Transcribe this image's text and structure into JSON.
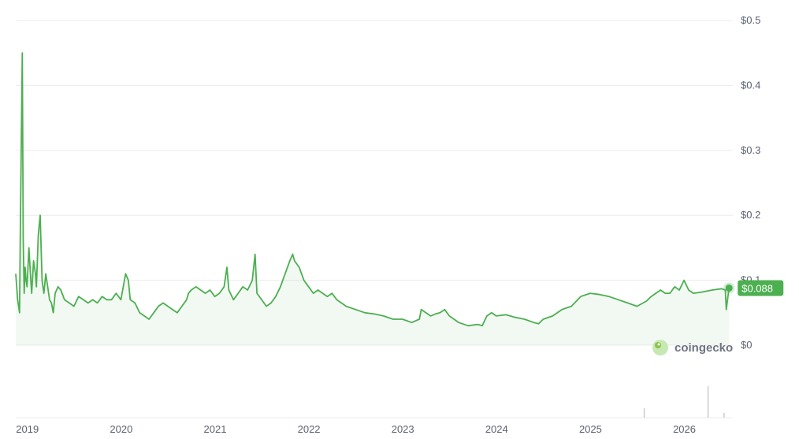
{
  "chart_data": {
    "type": "area",
    "title": "",
    "xlabel": "",
    "ylabel": "",
    "ylim": [
      0,
      0.5
    ],
    "grid": true,
    "y_ticks": [
      "$0",
      "$0.1",
      "$0.2",
      "$0.3",
      "$0.4",
      "$0.5"
    ],
    "y_tick_values": [
      0,
      0.1,
      0.2,
      0.3,
      0.4,
      0.5
    ],
    "x_ticks": [
      "2019",
      "2020",
      "2021",
      "2022",
      "2023",
      "2024",
      "2025",
      "2026"
    ],
    "x_tick_values": [
      2019.0,
      2020.0,
      2021.0,
      2022.0,
      2023.0,
      2024.0,
      2025.0,
      2026.0
    ],
    "xlim": [
      2018.88,
      2026.52
    ],
    "series": [
      {
        "color": "#4caf50",
        "x": [
          2018.88,
          2018.9,
          2018.92,
          2018.93,
          2018.95,
          2018.96,
          2018.97,
          2018.98,
          2018.99,
          2019.0,
          2019.02,
          2019.04,
          2019.05,
          2019.07,
          2019.09,
          2019.1,
          2019.12,
          2019.14,
          2019.16,
          2019.18,
          2019.2,
          2019.22,
          2019.24,
          2019.26,
          2019.28,
          2019.3,
          2019.33,
          2019.36,
          2019.4,
          2019.45,
          2019.5,
          2019.55,
          2019.6,
          2019.65,
          2019.7,
          2019.75,
          2019.8,
          2019.85,
          2019.9,
          2019.95,
          2020.0,
          2020.05,
          2020.08,
          2020.1,
          2020.15,
          2020.2,
          2020.25,
          2020.3,
          2020.35,
          2020.4,
          2020.45,
          2020.5,
          2020.55,
          2020.6,
          2020.65,
          2020.7,
          2020.72,
          2020.75,
          2020.8,
          2020.85,
          2020.9,
          2020.95,
          2021.0,
          2021.05,
          2021.1,
          2021.13,
          2021.15,
          2021.2,
          2021.25,
          2021.3,
          2021.35,
          2021.4,
          2021.43,
          2021.45,
          2021.5,
          2021.55,
          2021.6,
          2021.65,
          2021.7,
          2021.75,
          2021.8,
          2021.83,
          2021.85,
          2021.9,
          2021.95,
          2022.0,
          2022.05,
          2022.1,
          2022.15,
          2022.2,
          2022.25,
          2022.3,
          2022.35,
          2022.4,
          2022.5,
          2022.6,
          2022.7,
          2022.8,
          2022.9,
          2023.0,
          2023.1,
          2023.18,
          2023.2,
          2023.25,
          2023.3,
          2023.35,
          2023.4,
          2023.45,
          2023.5,
          2023.6,
          2023.7,
          2023.8,
          2023.85,
          2023.9,
          2023.95,
          2024.0,
          2024.1,
          2024.2,
          2024.3,
          2024.4,
          2024.45,
          2024.5,
          2024.6,
          2024.7,
          2024.8,
          2024.9,
          2025.0,
          2025.1,
          2025.2,
          2025.3,
          2025.4,
          2025.5,
          2025.6,
          2025.65,
          2025.7,
          2025.75,
          2025.8,
          2025.85,
          2025.9,
          2025.95,
          2026.0,
          2026.05,
          2026.1,
          2026.2,
          2026.3,
          2026.4,
          2026.44,
          2026.45,
          2026.48
        ],
        "values": [
          0.11,
          0.07,
          0.05,
          0.2,
          0.45,
          0.16,
          0.08,
          0.12,
          0.1,
          0.09,
          0.15,
          0.1,
          0.08,
          0.13,
          0.11,
          0.09,
          0.17,
          0.2,
          0.1,
          0.08,
          0.11,
          0.09,
          0.07,
          0.065,
          0.05,
          0.08,
          0.09,
          0.085,
          0.07,
          0.065,
          0.06,
          0.075,
          0.07,
          0.065,
          0.07,
          0.065,
          0.075,
          0.07,
          0.07,
          0.08,
          0.07,
          0.11,
          0.1,
          0.07,
          0.065,
          0.05,
          0.045,
          0.04,
          0.05,
          0.06,
          0.065,
          0.06,
          0.055,
          0.05,
          0.06,
          0.07,
          0.08,
          0.085,
          0.09,
          0.085,
          0.08,
          0.085,
          0.075,
          0.08,
          0.09,
          0.12,
          0.085,
          0.07,
          0.08,
          0.09,
          0.085,
          0.1,
          0.14,
          0.08,
          0.07,
          0.06,
          0.065,
          0.075,
          0.09,
          0.11,
          0.13,
          0.14,
          0.13,
          0.12,
          0.1,
          0.09,
          0.08,
          0.085,
          0.08,
          0.075,
          0.08,
          0.07,
          0.065,
          0.06,
          0.055,
          0.05,
          0.048,
          0.045,
          0.04,
          0.04,
          0.035,
          0.04,
          0.055,
          0.05,
          0.045,
          0.048,
          0.05,
          0.055,
          0.045,
          0.035,
          0.03,
          0.032,
          0.03,
          0.045,
          0.05,
          0.045,
          0.047,
          0.043,
          0.04,
          0.035,
          0.033,
          0.04,
          0.045,
          0.055,
          0.06,
          0.075,
          0.08,
          0.078,
          0.075,
          0.07,
          0.065,
          0.06,
          0.068,
          0.075,
          0.08,
          0.085,
          0.08,
          0.08,
          0.09,
          0.085,
          0.1,
          0.085,
          0.08,
          0.082,
          0.085,
          0.087,
          0.085,
          0.055,
          0.088
        ]
      }
    ],
    "volume": {
      "x": [
        2025.57,
        2026.25,
        2026.42
      ],
      "values": [
        0.3,
        1.0,
        0.15
      ]
    },
    "last_value": 0.088,
    "last_value_label": "$0.088"
  },
  "watermark": {
    "brand": "coingecko",
    "icon": "gecko-icon"
  },
  "colors": {
    "line": "#4caf50",
    "fill": "#4caf50",
    "badge": "#4caf50",
    "grid": "#ececf0",
    "tick_text": "#5b6170",
    "volume": "#c9ccd3"
  }
}
